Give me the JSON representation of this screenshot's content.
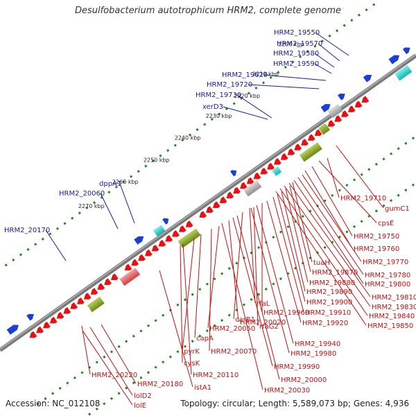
{
  "title": "Desulfobacterium autotrophicum HRM2, complete genome",
  "footer": {
    "accession": "Accession: NC_012108",
    "summary": "Topology: circular; Length: 5,589,073 bp; Genes: 4,936"
  },
  "scale_labels": [
    "2200 kbp",
    "2210 kbp",
    "2220 kbp",
    "2230 kbp",
    "2240 kbp",
    "2250 kbp",
    "2260 kbp",
    "2270 kbp"
  ],
  "forward_labels": [
    "HRM2_19550",
    "HRM2_19570",
    "HRM2_19580",
    "HRM2_19590",
    "HRM2_19620",
    "HRM2_19720",
    "HRM2_19730",
    "xerD3",
    "dppA1",
    "HRM2_20060",
    "HRM2_20170"
  ],
  "reverse_labels": [
    "HRM2_19710",
    "gumC1",
    "cpsE",
    "HRM2_19750",
    "HRM2_19760",
    "HRM2_19770",
    "tuaH",
    "HRM2_19780",
    "HRM2_19870",
    "HRM2_19800",
    "HRM2_19880",
    "HRM2_19810",
    "HRM2_19890",
    "HRM2_19830",
    "HRM2_19900",
    "HRM2_19840",
    "HRM2_19910",
    "HRM2_19850",
    "rfaL",
    "HRM2_19920",
    "HRM2_19960",
    "carB1",
    "rfaG2",
    "HRM2_19940",
    "HRM2_20020",
    "HRM2_19980",
    "HRM2_20050",
    "capA",
    "HRM2_20070",
    "pyrK",
    "HRM2_19990",
    "cysK",
    "HRM2_20000",
    "HRM2_20110",
    "HRM2_20030",
    "HRM2_20220",
    "istA1",
    "HRM2_20180",
    "lolD2",
    "lolE"
  ],
  "colors": {
    "backbone": "#7a7a7a",
    "forward_gene": "#1a3fd6",
    "reverse_gene": "#e81010",
    "gc_dots": "#1e8a1e",
    "label_blue": "#1a1aa6",
    "label_red": "#c01010",
    "rna_cyan": "#10d0c0",
    "operon_olive": "#8aa020",
    "operon_gray": "#b0b0b0"
  }
}
